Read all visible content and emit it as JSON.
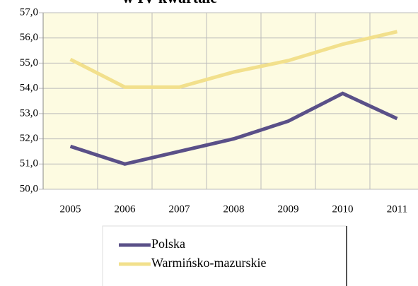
{
  "chart_data": {
    "type": "line",
    "title": "w IV kwartale",
    "categories": [
      "2005",
      "2006",
      "2007",
      "2008",
      "2009",
      "2010",
      "2011"
    ],
    "series": [
      {
        "name": "Polska",
        "color": "#5a5088",
        "values": [
          51.7,
          51.0,
          51.5,
          52.0,
          52.7,
          53.8,
          52.8
        ]
      },
      {
        "name": "Warmińsko-mazurskie",
        "color": "#f2e08c",
        "values": [
          55.15,
          54.05,
          54.05,
          54.65,
          55.1,
          55.75,
          56.25
        ]
      }
    ],
    "ylim": [
      50,
      57
    ],
    "yticks": [
      {
        "value": 50,
        "label": "50,0"
      },
      {
        "value": 51,
        "label": "51,0"
      },
      {
        "value": 52,
        "label": "52,0"
      },
      {
        "value": 53,
        "label": "53,0"
      },
      {
        "value": 54,
        "label": "54,0"
      },
      {
        "value": 55,
        "label": "55,0"
      },
      {
        "value": 56,
        "label": "56,0"
      },
      {
        "value": 57,
        "label": "57,0"
      }
    ],
    "grid": true,
    "legend": "bottom"
  }
}
